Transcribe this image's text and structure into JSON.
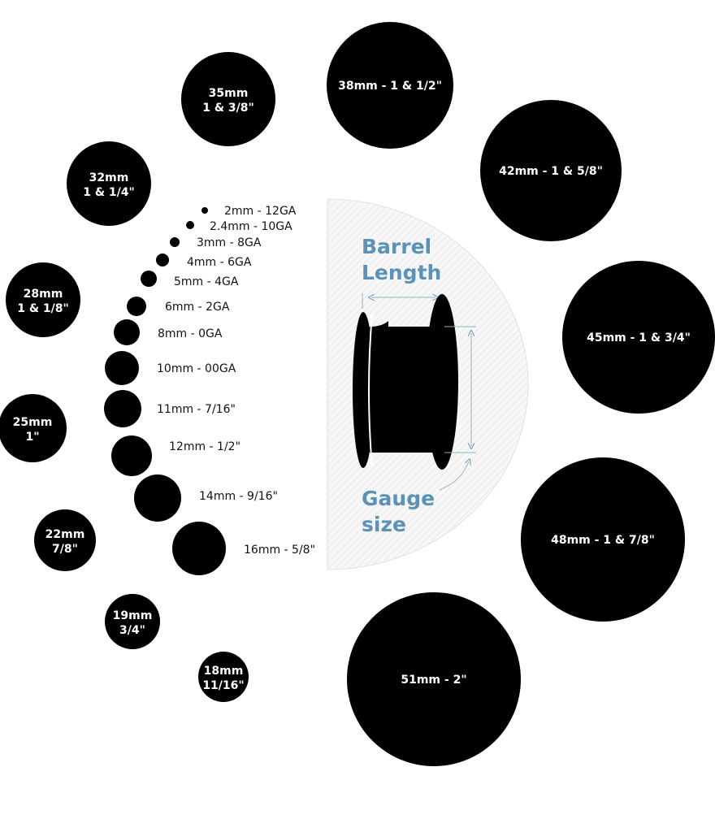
{
  "colors": {
    "circle": "#000000",
    "accent": "#5b93b8",
    "panel": "#f3f3f3"
  },
  "small_sizes": [
    {
      "label": "2mm - 12GA"
    },
    {
      "label": "2.4mm - 10GA"
    },
    {
      "label": "3mm - 8GA"
    },
    {
      "label": "4mm - 6GA"
    },
    {
      "label": "5mm - 4GA"
    },
    {
      "label": "6mm - 2GA"
    },
    {
      "label": "8mm - 0GA"
    },
    {
      "label": "10mm - 00GA"
    },
    {
      "label": "11mm - 7/16\""
    },
    {
      "label": "12mm - 1/2\""
    },
    {
      "label": "14mm - 9/16\""
    },
    {
      "label": "16mm - 5/8\""
    }
  ],
  "large_sizes": [
    {
      "line1": "18mm",
      "line2": "11/16\""
    },
    {
      "line1": "19mm",
      "line2": "3/4\""
    },
    {
      "line1": "22mm",
      "line2": "7/8\""
    },
    {
      "line1": "25mm",
      "line2": "1\""
    },
    {
      "line1": "28mm",
      "line2": "1 & 1/8\""
    },
    {
      "line1": "32mm",
      "line2": "1 & 1/4\""
    },
    {
      "line1": "35mm",
      "line2": "1 & 3/8\""
    },
    {
      "line1": "38mm - 1 & 1/2\"",
      "line2": ""
    },
    {
      "line1": "42mm - 1 & 5/8\"",
      "line2": ""
    },
    {
      "line1": "45mm - 1 & 3/4\"",
      "line2": ""
    },
    {
      "line1": "48mm - 1 & 7/8\"",
      "line2": ""
    },
    {
      "line1": "51mm - 2\"",
      "line2": ""
    }
  ],
  "diagram": {
    "barrel_line1": "Barrel",
    "barrel_line2": "Length",
    "gauge_line1": "Gauge",
    "gauge_line2": "size"
  }
}
